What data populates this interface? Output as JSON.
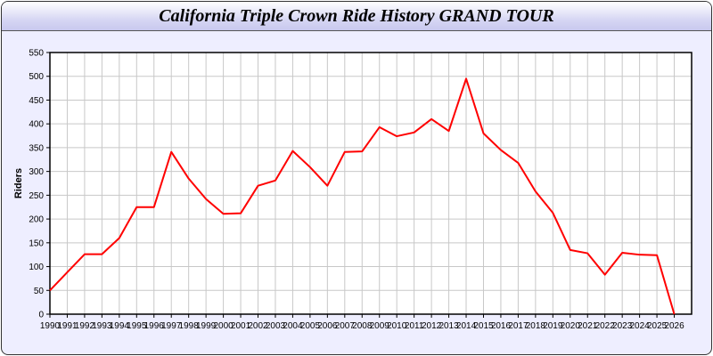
{
  "window": {
    "title": "California Triple Crown Ride History GRAND TOUR"
  },
  "chart_data": {
    "type": "line",
    "title": "California Triple Crown Ride History GRAND TOUR",
    "xlabel": "",
    "ylabel": "Riders",
    "xlim": [
      1990,
      2027
    ],
    "ylim": [
      0,
      550
    ],
    "yticks": [
      0,
      50,
      100,
      150,
      200,
      250,
      300,
      350,
      400,
      450,
      500,
      550
    ],
    "grid": true,
    "line_color": "#ff0000",
    "x": [
      1990,
      1991,
      1992,
      1993,
      1994,
      1995,
      1996,
      1997,
      1998,
      1999,
      2000,
      2001,
      2002,
      2003,
      2004,
      2005,
      2006,
      2007,
      2008,
      2009,
      2010,
      2011,
      2012,
      2013,
      2014,
      2015,
      2016,
      2017,
      2018,
      2019,
      2020,
      2021,
      2022,
      2023,
      2024,
      2025,
      2026
    ],
    "series": [
      {
        "values": [
          50,
          88,
          126,
          126,
          160,
          225,
          225,
          341,
          285,
          242,
          211,
          212,
          270,
          281,
          343,
          309,
          270,
          341,
          342,
          393,
          374,
          382,
          410,
          385,
          495,
          380,
          345,
          318,
          258,
          213,
          135,
          128,
          83,
          129,
          125,
          124,
          0
        ]
      }
    ]
  }
}
